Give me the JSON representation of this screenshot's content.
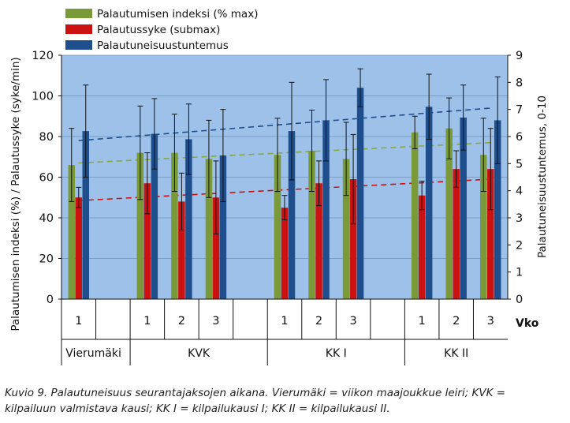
{
  "chart_data": {
    "type": "bar",
    "legend": [
      {
        "name": "Palautumisen indeksi (% max)",
        "color": "#7a9a3a"
      },
      {
        "name": "Palautussyke (submax)",
        "color": "#cc1111"
      },
      {
        "name": "Palautuneisuustuntemus",
        "color": "#1f4e8c"
      }
    ],
    "ylabel_left": "Palautumisen indeksi (%) / Palautussyke (syke/min)",
    "ylabel_right": "Palautuneisuustuntemus, 0-10",
    "ylim_left": [
      0,
      120
    ],
    "ylim_right": [
      0,
      9
    ],
    "yticks_left": [
      "0",
      "20",
      "40",
      "60",
      "80",
      "100",
      "120"
    ],
    "yticks_right": [
      "0",
      "1",
      "2",
      "3",
      "4",
      "5",
      "6",
      "7",
      "8",
      "9"
    ],
    "x_axis_label": "Vko",
    "categories": [
      "1",
      "",
      "1",
      "2",
      "3",
      "",
      "1",
      "2",
      "3",
      "",
      "1",
      "2",
      "3"
    ],
    "groups": [
      {
        "label": "Vierumäki"
      },
      {
        "label": "KVK"
      },
      {
        "label": "KK I"
      },
      {
        "label": "KK II"
      }
    ],
    "series": [
      {
        "name": "Palautumisen indeksi (% max)",
        "axis": "left",
        "values": [
          66,
          null,
          72,
          72,
          69,
          null,
          71,
          73,
          69,
          null,
          82,
          84,
          71
        ],
        "errors": [
          18,
          null,
          23,
          19,
          19,
          null,
          18,
          20,
          18,
          null,
          8,
          15,
          18
        ]
      },
      {
        "name": "Palautussyke (submax)",
        "axis": "left",
        "values": [
          50,
          null,
          57,
          48,
          50,
          null,
          45,
          57,
          59,
          null,
          51,
          64,
          64
        ],
        "errors": [
          5,
          null,
          15,
          14,
          18,
          null,
          6,
          11,
          22,
          null,
          7,
          9,
          20
        ]
      },
      {
        "name": "Palautuneisuustuntemus",
        "axis": "right",
        "values": [
          6.2,
          null,
          6.1,
          5.9,
          5.3,
          null,
          6.2,
          6.6,
          7.8,
          null,
          7.1,
          6.7,
          6.6
        ],
        "errors": [
          1.7,
          null,
          1.3,
          1.3,
          1.7,
          null,
          1.8,
          1.5,
          0.7,
          null,
          1.2,
          1.2,
          1.6
        ]
      }
    ],
    "trendlines": [
      {
        "series": "Palautumisen indeksi (% max)",
        "start": 67,
        "end": 77
      },
      {
        "series": "Palautussyke (submax)",
        "start": 48.5,
        "end": 59
      },
      {
        "series": "Palautuneisuustuntemus",
        "start": 5.85,
        "end": 7.05
      }
    ],
    "plot_background": "#9ec1ea"
  },
  "caption": "Kuvio 9. Palautuneisuus seurantajaksojen aikana. Vierumäki = viikon maajoukkue leiri; KVK = kilpailuun valmistava kausi; KK I = kilpailukausi I; KK II = kilpailukausi II."
}
